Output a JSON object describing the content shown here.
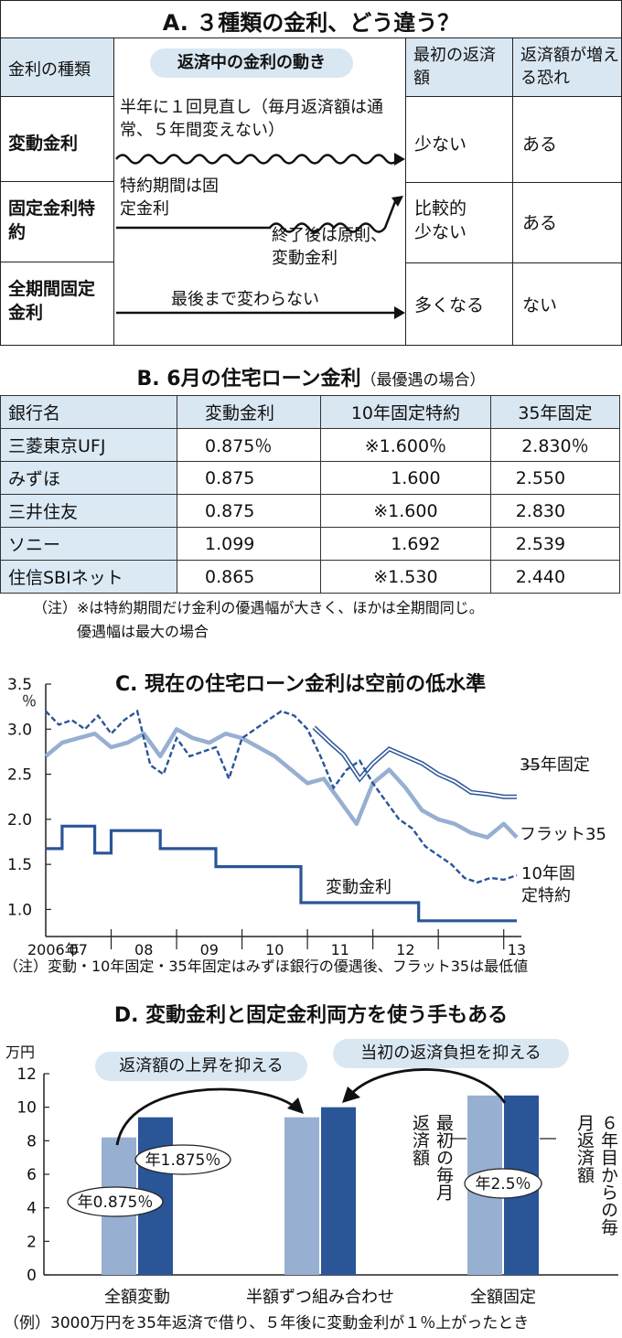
{
  "sectionA": {
    "title": "A. ３種類の金利、どう違う？",
    "col_type": "金利の種類",
    "movement_pill": "返済中の金利の動き",
    "col_first": "最初の返済額",
    "col_risk": "返済額が増える恐れ",
    "rows": [
      {
        "name": "変動金利",
        "note": "半年に１回見直し（毎月返済額は通常、５年間変えない）",
        "first": "少ない",
        "risk": "ある"
      },
      {
        "name": "固定金利特約",
        "note": "特約期間は固定金利",
        "note2": "終了後は原則、変動金利",
        "first": "比較的少ない",
        "risk": "ある"
      },
      {
        "name": "全期間固定金利",
        "note": "最後まで変わらない",
        "first": "多くなる",
        "risk": "ない"
      }
    ]
  },
  "sectionB": {
    "title": "B. 6月の住宅ローン金利",
    "subtitle": "（最優遇の場合）",
    "headers": [
      "銀行名",
      "変動金利",
      "10年固定特約",
      "35年固定"
    ],
    "rows": [
      [
        "三菱東京UFJ",
        "0.875％",
        "※1.600％",
        "2.830％"
      ],
      [
        "みずほ",
        "0.875",
        "1.600",
        "2.550"
      ],
      [
        "三井住友",
        "0.875",
        "※1.600",
        "2.830"
      ],
      [
        "ソニー",
        "1.099",
        "1.692",
        "2.539"
      ],
      [
        "住信SBIネット",
        "0.865",
        "※1.530",
        "2.440"
      ]
    ],
    "note1": "（注）※は特約期間だけ金利の優遇幅が大きく、ほかは全期間同じ。",
    "note2": "優遇幅は最大の場合"
  },
  "sectionC": {
    "title": "C. 現在の住宅ローン金利は空前の低水準",
    "note": "（注）変動・10年固定・35年固定はみずほ銀行の優遇後、フラット35は最低値"
  },
  "sectionD": {
    "title": "D. 変動金利と固定金利両方を使う手もある",
    "pill_left": "返済額の上昇を抑える",
    "pill_right": "当初の返済負担を抑える",
    "label_first": "最初の毎月返済額",
    "label_sixth": "６年目からの毎月返済額",
    "note": "（例）3000万円を35年返済で借り、５年後に変動金利が１％上がったとき"
  },
  "colors": {
    "dark": "#2a5597",
    "light": "#97afd1",
    "pale": "#d9e7f2"
  },
  "chart_data": [
    {
      "type": "line",
      "title": "C. 現在の住宅ローン金利は空前の低水準",
      "ylabel": "％",
      "ylim": [
        0.7,
        3.5
      ],
      "yticks": [
        "3.5",
        "3.0",
        "2.5",
        "2.0",
        "1.5",
        "1.0"
      ],
      "xticks": [
        "2006年",
        "07",
        "08",
        "09",
        "10",
        "11",
        "12",
        "13"
      ],
      "series": [
        {
          "name": "35年固定",
          "style": "double-line",
          "x": [
            2010.1,
            2010.35,
            2010.55,
            2010.8,
            2011.0,
            2011.25,
            2011.5,
            2011.75,
            2012.0,
            2012.25,
            2012.5,
            2012.75,
            2013.0,
            2013.2
          ],
          "values": [
            3.02,
            2.85,
            2.72,
            2.45,
            2.62,
            2.78,
            2.7,
            2.62,
            2.5,
            2.42,
            2.3,
            2.28,
            2.25,
            2.25
          ]
        },
        {
          "name": "フラット35",
          "style": "thick-light",
          "x": [
            2006.0,
            2006.25,
            2006.5,
            2006.75,
            2007.0,
            2007.25,
            2007.5,
            2007.75,
            2008.0,
            2008.25,
            2008.5,
            2008.75,
            2009.0,
            2009.25,
            2009.5,
            2009.75,
            2010.0,
            2010.25,
            2010.5,
            2010.75,
            2011.0,
            2011.25,
            2011.5,
            2011.75,
            2012.0,
            2012.25,
            2012.5,
            2012.75,
            2013.0,
            2013.2
          ],
          "values": [
            2.7,
            2.85,
            2.9,
            2.95,
            2.8,
            2.85,
            2.95,
            2.7,
            3.0,
            2.9,
            2.85,
            2.95,
            2.9,
            2.8,
            2.7,
            2.55,
            2.4,
            2.45,
            2.2,
            1.95,
            2.4,
            2.55,
            2.35,
            2.1,
            2.0,
            1.95,
            1.85,
            1.8,
            1.95,
            1.8
          ]
        },
        {
          "name": "10年固定特約",
          "style": "dashed",
          "x": [
            2006.0,
            2006.2,
            2006.4,
            2006.6,
            2006.8,
            2007.0,
            2007.2,
            2007.4,
            2007.6,
            2007.8,
            2008.0,
            2008.2,
            2008.4,
            2008.6,
            2008.8,
            2009.0,
            2009.2,
            2009.4,
            2009.6,
            2009.8,
            2010.0,
            2010.2,
            2010.4,
            2010.6,
            2010.8,
            2011.0,
            2011.2,
            2011.4,
            2011.6,
            2011.8,
            2012.0,
            2012.2,
            2012.4,
            2012.6,
            2012.8,
            2013.0,
            2013.2
          ],
          "values": [
            3.2,
            3.05,
            3.1,
            3.0,
            3.15,
            2.95,
            3.1,
            3.2,
            2.6,
            2.5,
            2.9,
            2.7,
            2.75,
            2.8,
            2.45,
            2.9,
            3.0,
            3.1,
            3.2,
            3.15,
            3.0,
            2.7,
            2.35,
            2.55,
            2.65,
            2.4,
            2.2,
            2.0,
            1.9,
            1.7,
            1.6,
            1.5,
            1.35,
            1.3,
            1.35,
            1.33,
            1.38
          ]
        },
        {
          "name": "変動金利",
          "style": "thick-dark",
          "x": [
            2006.0,
            2006.25,
            2006.25,
            2006.75,
            2006.75,
            2007.0,
            2007.0,
            2007.75,
            2007.75,
            2008.6,
            2008.6,
            2009.1,
            2009.1,
            2009.9,
            2009.9,
            2011.7,
            2011.7,
            2013.2
          ],
          "values": [
            1.675,
            1.675,
            1.925,
            1.925,
            1.625,
            1.625,
            1.875,
            1.875,
            1.675,
            1.675,
            1.475,
            1.475,
            1.475,
            1.475,
            1.075,
            1.075,
            0.875,
            0.875
          ]
        }
      ]
    },
    {
      "type": "bar",
      "ylabel": "万円",
      "ylim": [
        0,
        12
      ],
      "yticks": [
        "12",
        "10",
        "8",
        "6",
        "4",
        "2",
        "0"
      ],
      "categories": [
        "全額変動",
        "半額ずつ組み合わせ",
        "全額固定"
      ],
      "series": [
        {
          "name": "最初の毎月返済額",
          "values": [
            8.2,
            9.4,
            10.7
          ]
        },
        {
          "name": "６年目からの毎月返済額",
          "values": [
            9.4,
            10.0,
            10.7
          ]
        }
      ],
      "annotations": [
        "年0.875％",
        "年1.875％",
        "年2.5％"
      ]
    }
  ]
}
